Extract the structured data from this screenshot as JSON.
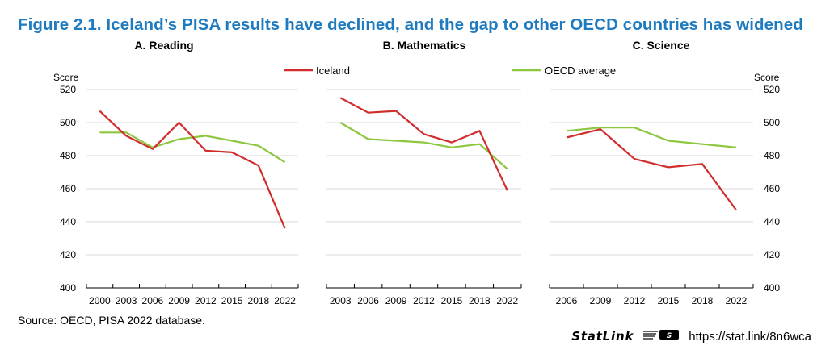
{
  "figure_title": "Figure 2.1. Iceland’s PISA results have declined, and the gap to other OECD countries has widened",
  "source": "Source: OECD, PISA 2022 database.",
  "statlink": {
    "brand": "StatLink",
    "url": "https://stat.link/8n6wca"
  },
  "colors": {
    "title": "#1f7bc0",
    "iceland": "#d12d2d",
    "oecd": "#8dc63f",
    "grid": "#d9d9d9"
  },
  "chart_data": [
    {
      "type": "line",
      "title": "A. Reading",
      "ylabel": "Score",
      "ylim": [
        400,
        520
      ],
      "yticks": [
        400,
        420,
        440,
        460,
        480,
        500,
        520
      ],
      "x": [
        "2000",
        "2003",
        "2006",
        "2009",
        "2012",
        "2015",
        "2018",
        "2022"
      ],
      "series": [
        {
          "name": "Iceland",
          "values": [
            507,
            492,
            484,
            500,
            483,
            482,
            474,
            436
          ]
        },
        {
          "name": "OECD average",
          "values": [
            494,
            494,
            485,
            490,
            492,
            489,
            486,
            476
          ]
        }
      ]
    },
    {
      "type": "line",
      "title": "B. Mathematics",
      "ylim": [
        400,
        520
      ],
      "x": [
        "2003",
        "2006",
        "2009",
        "2012",
        "2015",
        "2018",
        "2022"
      ],
      "series": [
        {
          "name": "Iceland",
          "values": [
            515,
            506,
            507,
            493,
            488,
            495,
            459
          ]
        },
        {
          "name": "OECD average",
          "values": [
            500,
            490,
            489,
            488,
            485,
            487,
            472
          ]
        }
      ]
    },
    {
      "type": "line",
      "title": "C. Science",
      "ylabel": "Score",
      "ylim": [
        400,
        520
      ],
      "yticks": [
        400,
        420,
        440,
        460,
        480,
        500,
        520
      ],
      "x": [
        "2006",
        "2009",
        "2012",
        "2015",
        "2018",
        "2022"
      ],
      "series": [
        {
          "name": "Iceland",
          "values": [
            491,
            496,
            478,
            473,
            475,
            447
          ]
        },
        {
          "name": "OECD average",
          "values": [
            495,
            497,
            497,
            489,
            487,
            485
          ]
        }
      ]
    }
  ],
  "legend": [
    {
      "name": "Iceland"
    },
    {
      "name": "OECD average"
    }
  ]
}
